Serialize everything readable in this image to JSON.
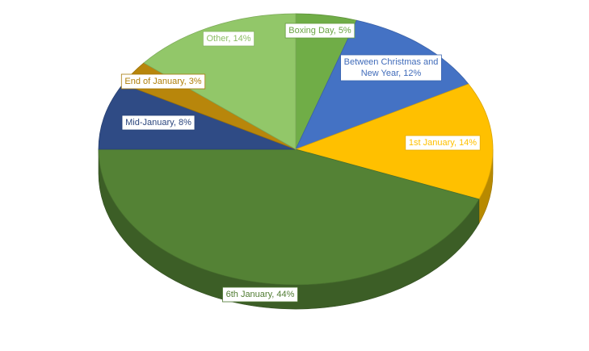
{
  "chart_data": {
    "type": "pie",
    "style": "3d-tilted",
    "start_angle_deg": 0,
    "direction": "clockwise",
    "slices": [
      {
        "label": "Boxing Day, 5%",
        "value": 5,
        "color": "#70AD47"
      },
      {
        "label": "Between Christmas and New Year, 12%",
        "label_lines": [
          "Between Christmas and",
          "New Year, 12%"
        ],
        "value": 12,
        "color": "#4472C4"
      },
      {
        "label": "1st January, 14%",
        "value": 14,
        "color": "#FFC000"
      },
      {
        "label": "6th January, 44%",
        "value": 44,
        "color": "#548235"
      },
      {
        "label": "Mid-January, 8%",
        "value": 8,
        "color": "#2F4B85"
      },
      {
        "label": "End of January, 3%",
        "value": 3,
        "color": "#B8860B"
      },
      {
        "label": "Other, 14%",
        "value": 14,
        "color": "#92C769"
      }
    ],
    "label_placement": "boxes-near-slices",
    "legend": "none"
  }
}
